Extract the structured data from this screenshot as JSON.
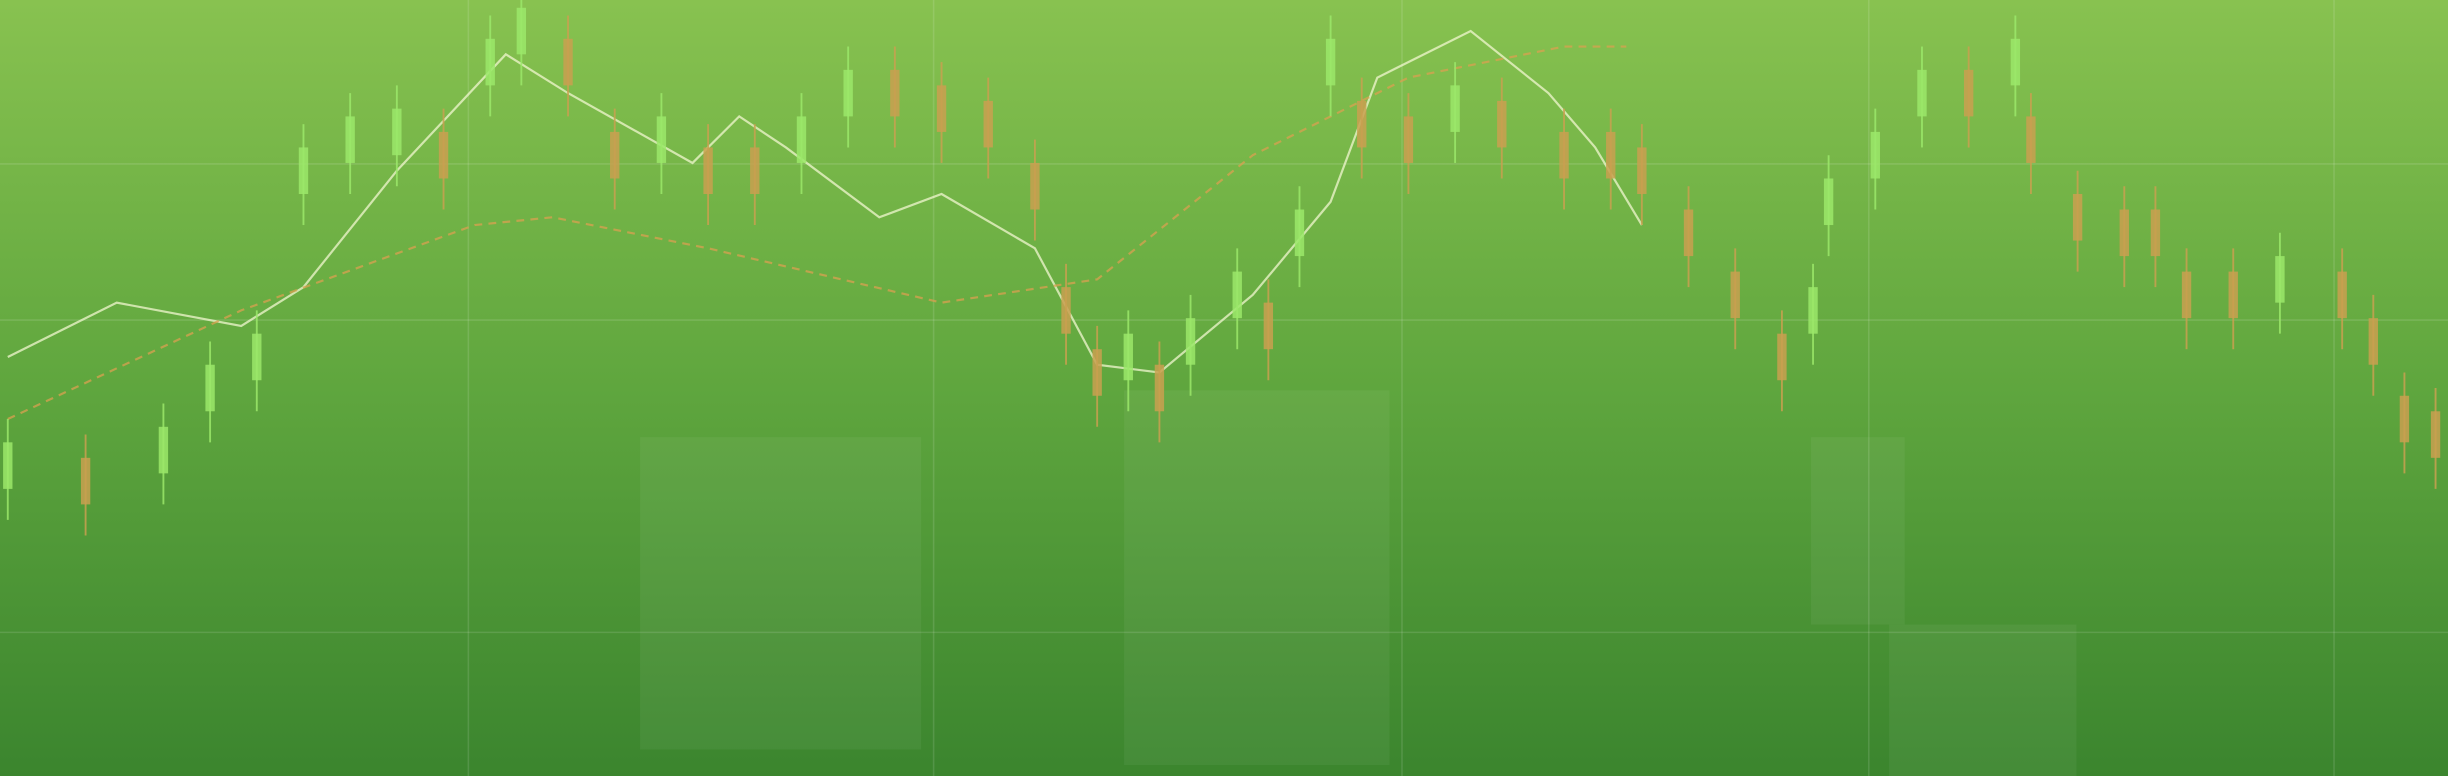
{
  "chart_data": {
    "type": "candlestick",
    "x": [
      0,
      50,
      100,
      130,
      160,
      190,
      220,
      250,
      280,
      310,
      330,
      360,
      390,
      420,
      450,
      480,
      510,
      540,
      570,
      600,
      630,
      660,
      680,
      700,
      720,
      740,
      760,
      790,
      810,
      830,
      850,
      870,
      900,
      930,
      960,
      1000,
      1030,
      1050,
      1080,
      1110,
      1140,
      1160,
      1170,
      1200,
      1230,
      1260,
      1290,
      1300,
      1330,
      1360,
      1380,
      1400,
      1430,
      1460,
      1500,
      1520,
      1540,
      1560
    ],
    "open": [
      37,
      41,
      39,
      47,
      51,
      75,
      79,
      80,
      83,
      89,
      93,
      95,
      83,
      79,
      81,
      81,
      79,
      85,
      91,
      89,
      87,
      79,
      63,
      55,
      51,
      53,
      53,
      59,
      61,
      67,
      89,
      87,
      85,
      83,
      87,
      83,
      83,
      81,
      73,
      65,
      57,
      57,
      71,
      77,
      85,
      91,
      89,
      85,
      75,
      73,
      73,
      65,
      65,
      61,
      65,
      59,
      49,
      47
    ],
    "close": [
      43,
      35,
      45,
      53,
      57,
      81,
      85,
      86,
      77,
      95,
      99,
      89,
      77,
      85,
      75,
      75,
      85,
      91,
      85,
      83,
      81,
      73,
      57,
      49,
      57,
      47,
      59,
      65,
      55,
      73,
      95,
      81,
      79,
      89,
      81,
      77,
      77,
      75,
      67,
      59,
      51,
      63,
      77,
      83,
      91,
      85,
      95,
      79,
      69,
      67,
      67,
      59,
      59,
      67,
      59,
      53,
      43,
      41
    ],
    "high": [
      46,
      44,
      48,
      56,
      60,
      84,
      88,
      89,
      86,
      98,
      102,
      98,
      86,
      88,
      84,
      84,
      88,
      94,
      94,
      92,
      90,
      82,
      66,
      58,
      60,
      56,
      62,
      68,
      64,
      76,
      98,
      90,
      88,
      92,
      90,
      86,
      86,
      84,
      76,
      68,
      60,
      66,
      80,
      86,
      94,
      94,
      98,
      88,
      78,
      76,
      76,
      68,
      68,
      70,
      68,
      62,
      52,
      50
    ],
    "low": [
      33,
      31,
      35,
      43,
      47,
      71,
      75,
      76,
      73,
      85,
      89,
      85,
      73,
      75,
      71,
      71,
      75,
      81,
      81,
      79,
      77,
      69,
      53,
      45,
      47,
      43,
      49,
      55,
      51,
      63,
      85,
      77,
      75,
      79,
      77,
      73,
      73,
      71,
      63,
      55,
      47,
      53,
      67,
      73,
      81,
      81,
      85,
      75,
      65,
      63,
      63,
      55,
      55,
      57,
      55,
      49,
      39,
      37
    ],
    "up_color": "#9be86a",
    "down_color": "#c9a050",
    "xlim": [
      -5,
      1568
    ],
    "ylim": [
      0,
      100
    ],
    "lines": [
      {
        "x": [
          0,
          70,
          150,
          190,
          250,
          320,
          360,
          440,
          470,
          500,
          560,
          600,
          660,
          700,
          740,
          800,
          850,
          880,
          940,
          990,
          1020,
          1050
        ],
        "values": [
          54,
          61,
          58,
          63,
          78,
          93,
          88,
          79,
          85,
          81,
          72,
          75,
          68,
          53,
          52,
          62,
          74,
          90,
          96,
          88,
          81,
          71
        ],
        "color": "#f2f7d0",
        "dashed": false
      },
      {
        "x": [
          0,
          150,
          300,
          350,
          450,
          600,
          700,
          800,
          900,
          1000,
          1040
        ],
        "values": [
          46,
          60,
          71,
          72,
          68,
          61,
          64,
          80,
          90,
          94,
          94
        ],
        "color": "#d9a050",
        "dashed": true
      }
    ]
  }
}
